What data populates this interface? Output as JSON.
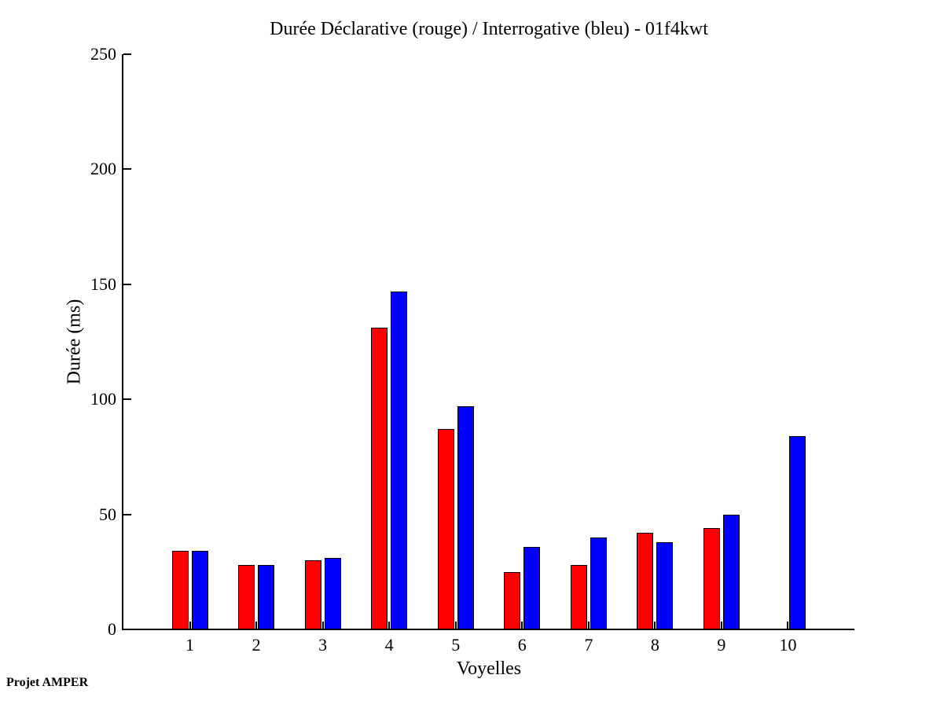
{
  "chart_data": {
    "type": "bar",
    "title": "Durée Déclarative (rouge) / Interrogative (bleu) - 01f4kwt",
    "xlabel": "Voyelles",
    "ylabel": "Durée (ms)",
    "footer": "Projet AMPER",
    "categories": [
      "1",
      "2",
      "3",
      "4",
      "5",
      "6",
      "7",
      "8",
      "9",
      "10"
    ],
    "series": [
      {
        "name": "declarative",
        "label": "Déclarative (rouge)",
        "color": "#ff0000",
        "values": [
          34,
          28,
          30,
          131,
          87,
          25,
          28,
          42,
          44,
          0
        ]
      },
      {
        "name": "interrogative",
        "label": "Interrogative (bleu)",
        "color": "#0000ff",
        "values": [
          34,
          28,
          31,
          147,
          97,
          36,
          40,
          38,
          50,
          84
        ]
      }
    ],
    "ylim": [
      0,
      250
    ],
    "yticks": [
      0,
      50,
      100,
      150,
      200,
      250
    ],
    "grid": false,
    "legend_position": "none"
  }
}
